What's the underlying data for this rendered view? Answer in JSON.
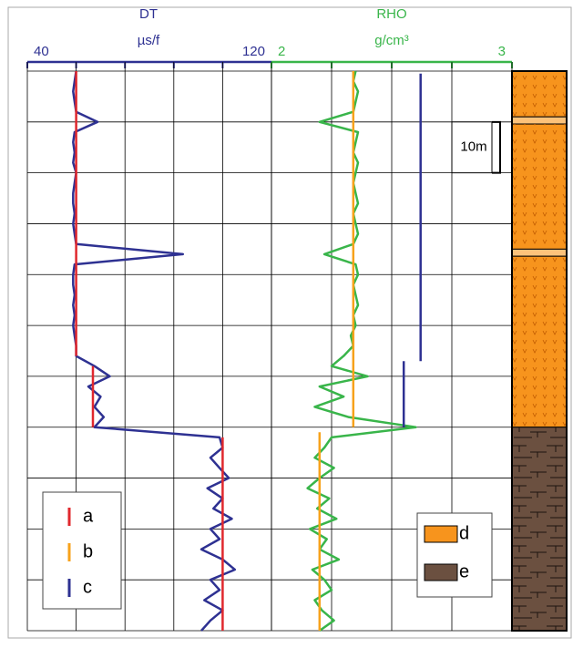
{
  "chart_data": {
    "type": "well-log",
    "dt_axis": {
      "title": "DT",
      "unit": "µs/f",
      "lim": [
        40,
        120
      ],
      "ticks": [
        40,
        56,
        72,
        88,
        104,
        120
      ],
      "color": "#2e3192"
    },
    "rho_axis": {
      "title": "RHO",
      "unit": "g/cm³",
      "lim": [
        2,
        3
      ],
      "ticks": [
        2,
        2.25,
        2.5,
        2.75,
        3
      ],
      "color": "#39b54a"
    },
    "depth_lim": [
      0,
      110
    ],
    "depth_ticks": [
      0,
      10,
      20,
      30,
      40,
      50,
      60,
      70,
      80,
      90,
      100,
      110
    ],
    "grid": true,
    "series": [
      {
        "name": "c",
        "color": "#2e3192",
        "axis": "dt",
        "depth": [
          0,
          2,
          4,
          6,
          8,
          10,
          12,
          14,
          16,
          18,
          20,
          22,
          24,
          26,
          28,
          30,
          32,
          34,
          36,
          38,
          40,
          42,
          44,
          46,
          48,
          50,
          52,
          54,
          56,
          58,
          60,
          62,
          64,
          66,
          68,
          70,
          72,
          74,
          76,
          78,
          80,
          82,
          84,
          86,
          88,
          90,
          92,
          94,
          96,
          98,
          100,
          102,
          104,
          106,
          108,
          110
        ],
        "values": [
          56,
          55.5,
          55,
          55.5,
          56,
          63,
          55.5,
          55,
          55.5,
          55,
          56,
          55.5,
          55,
          55,
          55.5,
          55,
          55.5,
          56,
          91,
          55.5,
          55,
          55,
          55.5,
          55,
          55.5,
          55,
          55.5,
          56,
          56,
          62,
          67,
          60,
          64,
          62,
          65,
          62,
          103,
          104,
          100,
          103,
          106,
          99,
          104,
          101,
          107,
          100,
          103,
          97,
          104,
          108,
          100,
          103,
          98,
          104,
          100,
          97
        ]
      },
      {
        "color": "#39b54a",
        "axis": "rho",
        "depth": [
          0,
          2,
          4,
          6,
          8,
          10,
          12,
          14,
          16,
          18,
          20,
          22,
          24,
          26,
          28,
          30,
          32,
          34,
          36,
          38,
          40,
          42,
          44,
          46,
          48,
          50,
          52,
          54,
          56,
          58,
          60,
          62,
          64,
          66,
          68,
          70,
          72,
          74,
          76,
          78,
          80,
          82,
          84,
          86,
          88,
          90,
          92,
          94,
          96,
          98,
          100,
          102,
          104,
          106,
          108,
          110
        ],
        "values": [
          2.35,
          2.34,
          2.36,
          2.35,
          2.34,
          2.2,
          2.36,
          2.35,
          2.34,
          2.36,
          2.35,
          2.34,
          2.35,
          2.36,
          2.34,
          2.35,
          2.36,
          2.34,
          2.22,
          2.35,
          2.36,
          2.34,
          2.35,
          2.36,
          2.34,
          2.35,
          2.33,
          2.34,
          2.3,
          2.25,
          2.4,
          2.2,
          2.3,
          2.18,
          2.32,
          2.6,
          2.25,
          2.22,
          2.18,
          2.26,
          2.2,
          2.15,
          2.24,
          2.19,
          2.27,
          2.16,
          2.23,
          2.2,
          2.28,
          2.17,
          2.22,
          2.25,
          2.18,
          2.21,
          2.26,
          2.2
        ]
      },
      {
        "color": "#2e3192",
        "axis": "rho",
        "depth": [
          0.5,
          57,
          null,
          57,
          70
        ],
        "values": [
          2.62,
          2.62,
          null,
          2.55,
          2.55
        ]
      },
      {
        "name": "a",
        "color": "#e0282e",
        "axis": "dt",
        "depth": [
          0,
          56,
          null,
          58,
          70,
          null,
          72,
          110
        ],
        "values": [
          56,
          56,
          null,
          61.5,
          61.5,
          null,
          104,
          104
        ]
      },
      {
        "name": "b",
        "color": "#f7a21b",
        "axis": "rho",
        "depth": [
          0,
          70,
          null,
          71,
          110
        ],
        "values": [
          2.34,
          2.34,
          null,
          2.2,
          2.2
        ]
      }
    ],
    "legend_order": [
      3,
      4,
      0
    ],
    "lithology_legend": [
      {
        "name": "d",
        "color": "#f7941d"
      },
      {
        "name": "e",
        "color": "#6b5040"
      }
    ],
    "lithology": [
      {
        "top": 0,
        "bottom": 9,
        "color": "#f7941d"
      },
      {
        "top": 9,
        "bottom": 10.4,
        "color": "#fdc27a"
      },
      {
        "top": 10.4,
        "bottom": 35,
        "color": "#f7941d"
      },
      {
        "top": 35,
        "bottom": 36.4,
        "color": "#fdc27a"
      },
      {
        "top": 36.4,
        "bottom": 70,
        "color": "#f7941d"
      },
      {
        "top": 70,
        "bottom": 110,
        "color": "#6b5040"
      }
    ],
    "scale_bar": {
      "label": "10m",
      "top": 10,
      "bottom": 20
    }
  }
}
